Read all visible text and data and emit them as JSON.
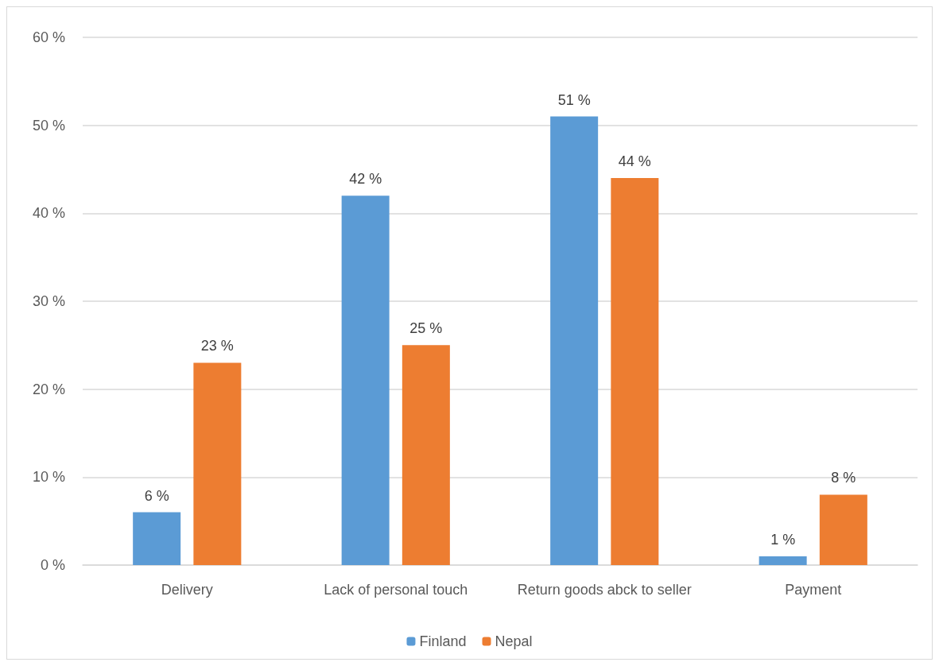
{
  "chart_data": {
    "type": "bar",
    "categories": [
      "Delivery",
      "Lack of personal touch",
      "Return goods abck to seller",
      "Payment"
    ],
    "series": [
      {
        "name": "Finland",
        "color": "#5b9bd5",
        "values": [
          6,
          42,
          51,
          1
        ],
        "value_labels": [
          "6 %",
          "42 %",
          "51 %",
          "1 %"
        ]
      },
      {
        "name": "Nepal",
        "color": "#ed7d31",
        "values": [
          23,
          25,
          44,
          8
        ],
        "value_labels": [
          "23 %",
          "25 %",
          "44 %",
          "8 %"
        ]
      }
    ],
    "ylim": [
      0,
      60
    ],
    "yticks": [
      {
        "value": 0,
        "label": "0 %"
      },
      {
        "value": 10,
        "label": "10 %"
      },
      {
        "value": 20,
        "label": "20 %"
      },
      {
        "value": 30,
        "label": "30 %"
      },
      {
        "value": 40,
        "label": "40 %"
      },
      {
        "value": 50,
        "label": "50 %"
      },
      {
        "value": 60,
        "label": "60 %"
      }
    ],
    "grid": "y",
    "legend": "bottom"
  }
}
